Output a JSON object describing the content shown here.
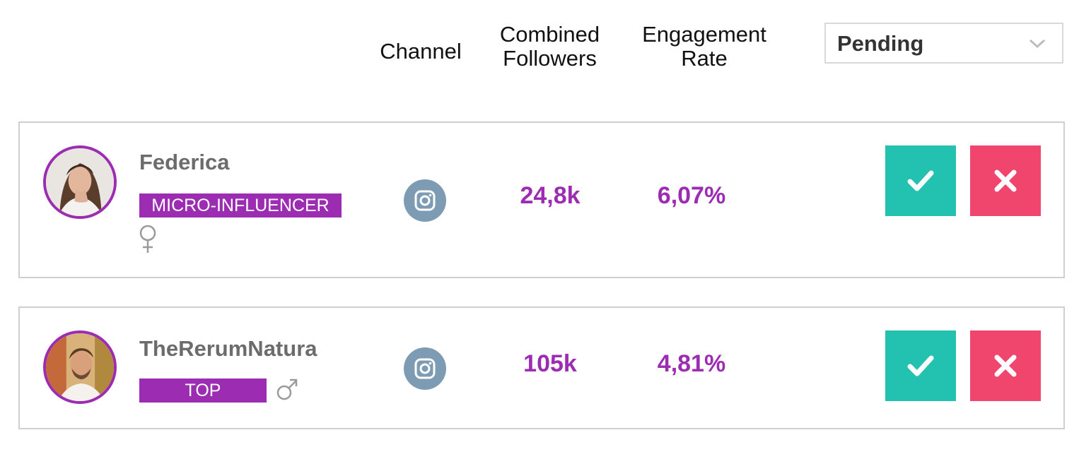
{
  "header": {
    "columns": {
      "channel": "Channel",
      "followers": "Combined\nFollowers",
      "engagement": "Engagement\nRate"
    },
    "status_filter": {
      "selected": "Pending",
      "icon": "chevron-down-icon"
    }
  },
  "colors": {
    "accent": "#9c2db3",
    "accept": "#22c1b0",
    "reject": "#f0466e",
    "channel_icon_bg": "#7d9cb4"
  },
  "influencers": [
    {
      "name": "Federica",
      "tier": "MICRO-INFLUENCER",
      "gender_icon": "female-icon",
      "channel_icon": "instagram-icon",
      "followers": "24,8k",
      "engagement_rate": "6,07%"
    },
    {
      "name": "TheRerumNatura",
      "tier": "TOP",
      "gender_icon": "male-icon",
      "channel_icon": "instagram-icon",
      "followers": "105k",
      "engagement_rate": "4,81%"
    }
  ]
}
